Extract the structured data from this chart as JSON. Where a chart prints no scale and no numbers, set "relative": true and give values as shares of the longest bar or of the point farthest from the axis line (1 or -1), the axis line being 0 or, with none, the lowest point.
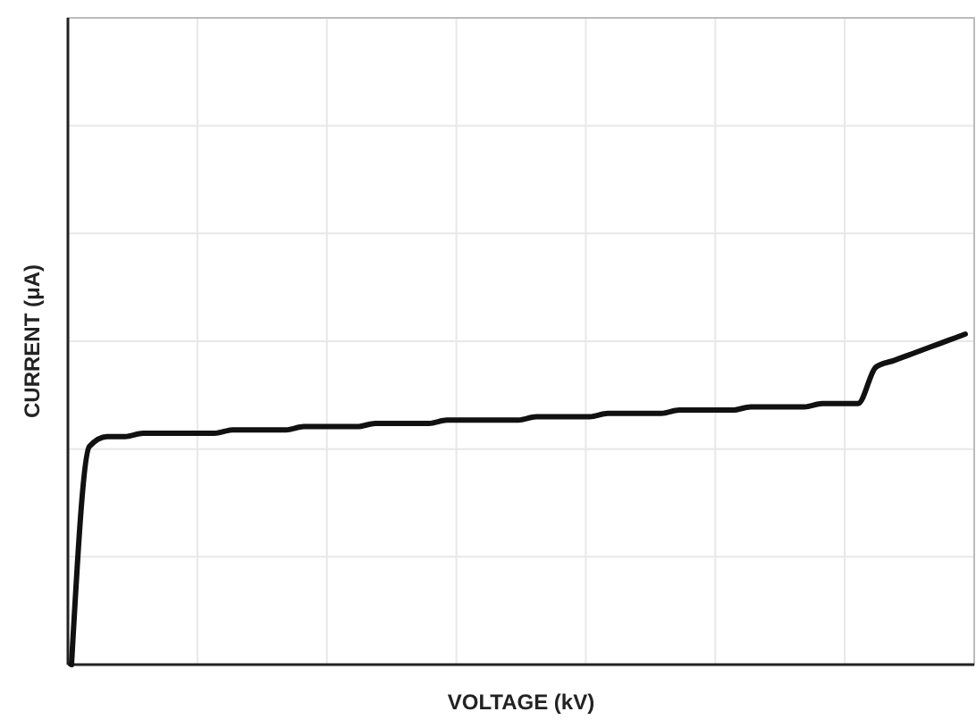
{
  "chart_data": {
    "type": "line",
    "xlabel": "VOLTAGE (kV)",
    "ylabel": "CURRENT (μA)",
    "relative": true,
    "grid": true,
    "categories": [
      null,
      null,
      null,
      null,
      null,
      null,
      null,
      null,
      null,
      null,
      null,
      null,
      null,
      null,
      null,
      null,
      null,
      null,
      null,
      null,
      null,
      null,
      null,
      null,
      null,
      null,
      null,
      null,
      null,
      null,
      null,
      null,
      null,
      null,
      null,
      null,
      null,
      null,
      null,
      null,
      null,
      null,
      null,
      null,
      null,
      null,
      null,
      null,
      null,
      null,
      null
    ],
    "series": [
      {
        "color": "#111111",
        "values": [
          0,
          0.66,
          0.69,
          0.69,
          0.7,
          0.7,
          0.7,
          0.7,
          0.7,
          0.71,
          0.71,
          0.71,
          0.71,
          0.72,
          0.72,
          0.72,
          0.72,
          0.73,
          0.73,
          0.73,
          0.73,
          0.74,
          0.74,
          0.74,
          0.74,
          0.74,
          0.75,
          0.75,
          0.75,
          0.75,
          0.76,
          0.76,
          0.76,
          0.76,
          0.77,
          0.77,
          0.77,
          0.77,
          0.78,
          0.78,
          0.78,
          0.78,
          0.79,
          0.79,
          0.79,
          0.9,
          0.92,
          0.94,
          0.96,
          0.98,
          1.0
        ]
      }
    ]
  }
}
